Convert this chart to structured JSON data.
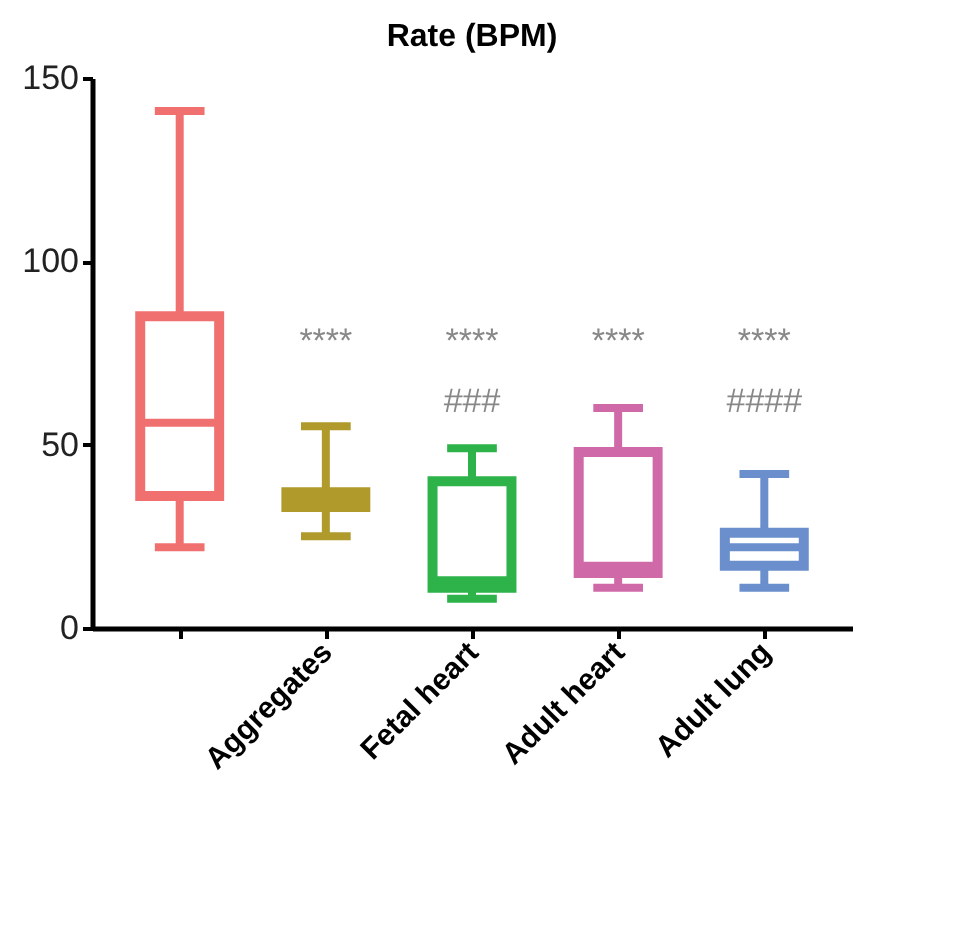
{
  "chart_data": {
    "type": "box",
    "title": "Rate (BPM)",
    "categories": [
      null,
      "Aggregates",
      "Fetal heart",
      "Adult heart",
      "Adult lung"
    ],
    "colors": [
      "#f07070",
      "#b09a2c",
      "#2db34a",
      "#d069a8",
      "#6a8fcc"
    ],
    "boxes": [
      {
        "low": 22,
        "q1": 36,
        "median": 56,
        "q3": 85,
        "high": 141
      },
      {
        "low": 25,
        "q1": 33,
        "median": 35,
        "q3": 37,
        "high": 55
      },
      {
        "low": 8,
        "q1": 11,
        "median": 13,
        "q3": 40,
        "high": 49
      },
      {
        "low": 11,
        "q1": 15,
        "median": 17,
        "q3": 48,
        "high": 60
      },
      {
        "low": 11,
        "q1": 17,
        "median": 22,
        "q3": 26,
        "high": 42
      }
    ],
    "ylim": [
      0,
      150
    ],
    "yticks": [
      0,
      50,
      100,
      150
    ],
    "grid": false,
    "annotations": [
      "****",
      "****",
      "###",
      "****",
      "****",
      "####"
    ]
  }
}
